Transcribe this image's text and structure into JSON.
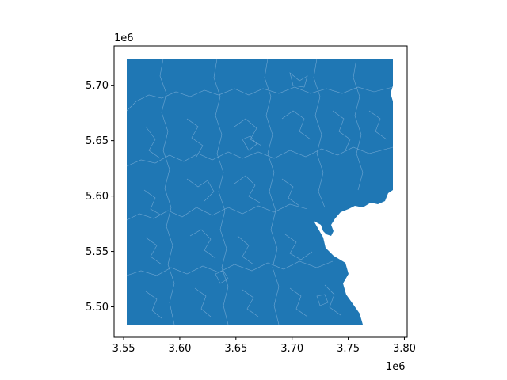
{
  "map": {
    "fill_color": "#1f77b4",
    "boundary_color": "#6fa6d2",
    "edge_color": "#000000"
  },
  "axes": {
    "x_offset_label": "1e6",
    "y_offset_label": "1e6",
    "x_ticks": [
      "3.55",
      "3.60",
      "3.65",
      "3.70",
      "3.75",
      "3.80"
    ],
    "y_ticks": [
      "5.50",
      "5.55",
      "5.60",
      "5.65",
      "5.70"
    ]
  },
  "chart_data": {
    "type": "map",
    "xlim": [
      3.5415,
      3.8025
    ],
    "ylim": [
      5.4725,
      5.7355
    ],
    "x_scale_multiplier": "1e6",
    "y_scale_multiplier": "1e6",
    "x_ticks": [
      3.55,
      3.6,
      3.65,
      3.7,
      3.75,
      3.8
    ],
    "y_ticks": [
      5.5,
      5.55,
      5.6,
      5.65,
      5.7
    ],
    "grid": false,
    "legend": "none"
  }
}
